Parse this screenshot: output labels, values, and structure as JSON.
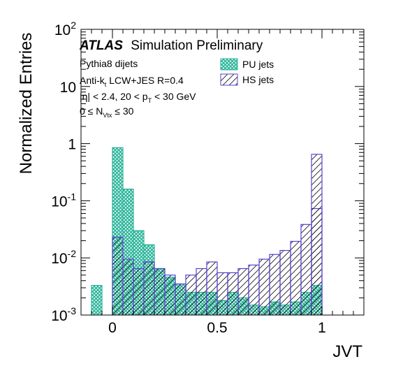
{
  "chart_data": {
    "type": "histogram",
    "title": "Simulation Preliminary",
    "brand": "ATLAS",
    "xlabel": "JVT",
    "ylabel": "Normalized Entries",
    "xlim": [
      -0.15,
      1.2
    ],
    "ylim": [
      0.001,
      100
    ],
    "yscale": "log",
    "x_ticks": [
      {
        "value": 0,
        "label": "0"
      },
      {
        "value": 0.5,
        "label": "0.5"
      },
      {
        "value": 1,
        "label": "1"
      }
    ],
    "y_ticks": [
      {
        "value": 0.001,
        "base": "10",
        "exp": "-3"
      },
      {
        "value": 0.01,
        "base": "10",
        "exp": "-2"
      },
      {
        "value": 0.1,
        "base": "10",
        "exp": "-1"
      },
      {
        "value": 1,
        "label": "1"
      },
      {
        "value": 10,
        "label": "10"
      },
      {
        "value": 100,
        "base": "10",
        "exp": "2"
      }
    ],
    "annotations": {
      "line1": "Pythia8 dijets",
      "line2_a": "Anti-k",
      "line2_sub": "t",
      "line2_b": " LCW+JES R=0.4",
      "line3_a": "|η| < 2.4, 20 < p",
      "line3_sub": "T",
      "line3_b": " < 30 GeV",
      "line4_a": "0 ≤ N",
      "line4_sub": "Vtx",
      "line4_b": " ≤ 30"
    },
    "legend_position": "top-right",
    "bin_width": 0.05,
    "series": [
      {
        "name": "PU jets",
        "color": "#2bb59a",
        "style": "crosshatch",
        "bins": [
          {
            "x": -0.1,
            "y": 0.0033
          },
          {
            "x": 0.0,
            "y": 0.85
          },
          {
            "x": 0.05,
            "y": 0.16
          },
          {
            "x": 0.1,
            "y": 0.03
          },
          {
            "x": 0.15,
            "y": 0.017
          },
          {
            "x": 0.2,
            "y": 0.0065
          },
          {
            "x": 0.25,
            "y": 0.0046
          },
          {
            "x": 0.3,
            "y": 0.0035
          },
          {
            "x": 0.35,
            "y": 0.0025
          },
          {
            "x": 0.4,
            "y": 0.0025
          },
          {
            "x": 0.45,
            "y": 0.0025
          },
          {
            "x": 0.5,
            "y": 0.0018
          },
          {
            "x": 0.55,
            "y": 0.0025
          },
          {
            "x": 0.6,
            "y": 0.002
          },
          {
            "x": 0.65,
            "y": 0.0015
          },
          {
            "x": 0.7,
            "y": 0.0014
          },
          {
            "x": 0.75,
            "y": 0.0017
          },
          {
            "x": 0.8,
            "y": 0.0015
          },
          {
            "x": 0.85,
            "y": 0.0017
          },
          {
            "x": 0.9,
            "y": 0.0025
          },
          {
            "x": 0.95,
            "y": 0.0033
          }
        ]
      },
      {
        "name": "HS jets",
        "color": "#5a3fd6",
        "style": "hatch",
        "bins": [
          {
            "x": 0.0,
            "y": 0.023
          },
          {
            "x": 0.05,
            "y": 0.0095
          },
          {
            "x": 0.1,
            "y": 0.0065
          },
          {
            "x": 0.15,
            "y": 0.0085
          },
          {
            "x": 0.2,
            "y": 0.0065
          },
          {
            "x": 0.25,
            "y": 0.005
          },
          {
            "x": 0.3,
            "y": 0.0035
          },
          {
            "x": 0.35,
            "y": 0.005
          },
          {
            "x": 0.4,
            "y": 0.0065
          },
          {
            "x": 0.45,
            "y": 0.0085
          },
          {
            "x": 0.5,
            "y": 0.0055
          },
          {
            "x": 0.55,
            "y": 0.0055
          },
          {
            "x": 0.6,
            "y": 0.0065
          },
          {
            "x": 0.65,
            "y": 0.0075
          },
          {
            "x": 0.7,
            "y": 0.0095
          },
          {
            "x": 0.75,
            "y": 0.0115
          },
          {
            "x": 0.8,
            "y": 0.0135
          },
          {
            "x": 0.85,
            "y": 0.0195
          },
          {
            "x": 0.9,
            "y": 0.0385
          },
          {
            "x": 0.95,
            "y": 0.073
          },
          {
            "x": 0.95,
            "y": 0.65
          }
        ]
      }
    ]
  }
}
